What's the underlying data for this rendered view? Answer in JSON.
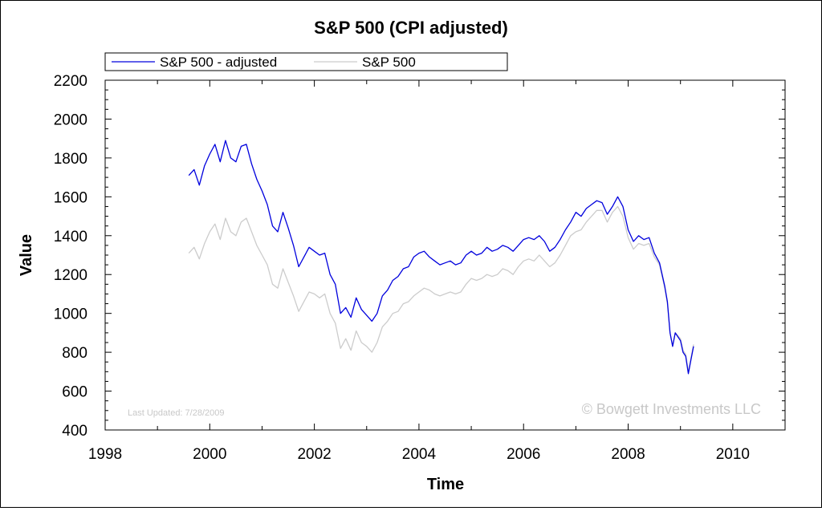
{
  "chart_data": {
    "type": "line",
    "title": "S&P 500 (CPI adjusted)",
    "xlabel": "Time",
    "ylabel": "Value",
    "xlim": [
      1998,
      2011
    ],
    "ylim": [
      400,
      2200
    ],
    "x_ticks": [
      1998,
      2000,
      2002,
      2004,
      2006,
      2008,
      2010
    ],
    "y_ticks": [
      400,
      600,
      800,
      1000,
      1200,
      1400,
      1600,
      1800,
      2000,
      2200
    ],
    "legend_position": "top",
    "annotation": "Last Updated: 7/28/2009",
    "watermark": "© Bowgett Investments LLC",
    "series": [
      {
        "name": "S&P 500 - adjusted",
        "color": "#0000dd",
        "x": [
          1999.6,
          1999.7,
          1999.8,
          1999.9,
          2000.0,
          2000.1,
          2000.2,
          2000.3,
          2000.4,
          2000.5,
          2000.6,
          2000.7,
          2000.8,
          2000.9,
          2001.0,
          2001.1,
          2001.2,
          2001.3,
          2001.4,
          2001.5,
          2001.6,
          2001.7,
          2001.8,
          2001.9,
          2002.0,
          2002.1,
          2002.2,
          2002.3,
          2002.4,
          2002.5,
          2002.6,
          2002.7,
          2002.8,
          2002.9,
          2003.0,
          2003.1,
          2003.2,
          2003.3,
          2003.4,
          2003.5,
          2003.6,
          2003.7,
          2003.8,
          2003.9,
          2004.0,
          2004.1,
          2004.2,
          2004.3,
          2004.4,
          2004.5,
          2004.6,
          2004.7,
          2004.8,
          2004.9,
          2005.0,
          2005.1,
          2005.2,
          2005.3,
          2005.4,
          2005.5,
          2005.6,
          2005.7,
          2005.8,
          2005.9,
          2006.0,
          2006.1,
          2006.2,
          2006.3,
          2006.4,
          2006.5,
          2006.6,
          2006.7,
          2006.8,
          2006.9,
          2007.0,
          2007.1,
          2007.2,
          2007.3,
          2007.4,
          2007.5,
          2007.6,
          2007.7,
          2007.8,
          2007.9,
          2008.0,
          2008.1,
          2008.2,
          2008.3,
          2008.4,
          2008.5,
          2008.6,
          2008.7,
          2008.75,
          2008.8,
          2008.85,
          2008.9,
          2009.0,
          2009.05,
          2009.1,
          2009.15,
          2009.2,
          2009.25
        ],
        "y": [
          1710,
          1740,
          1660,
          1760,
          1820,
          1870,
          1780,
          1890,
          1800,
          1780,
          1860,
          1870,
          1770,
          1690,
          1630,
          1560,
          1450,
          1420,
          1520,
          1440,
          1350,
          1240,
          1290,
          1340,
          1320,
          1300,
          1310,
          1200,
          1150,
          1000,
          1030,
          980,
          1080,
          1020,
          990,
          960,
          1000,
          1090,
          1120,
          1170,
          1190,
          1230,
          1240,
          1290,
          1310,
          1320,
          1290,
          1270,
          1250,
          1260,
          1270,
          1250,
          1260,
          1300,
          1320,
          1300,
          1310,
          1340,
          1320,
          1330,
          1350,
          1340,
          1320,
          1350,
          1380,
          1390,
          1380,
          1400,
          1370,
          1320,
          1340,
          1380,
          1430,
          1470,
          1520,
          1500,
          1540,
          1560,
          1580,
          1570,
          1510,
          1550,
          1600,
          1550,
          1430,
          1370,
          1400,
          1380,
          1390,
          1310,
          1260,
          1140,
          1060,
          900,
          830,
          900,
          860,
          800,
          780,
          690,
          760,
          830
        ]
      },
      {
        "name": "S&P 500",
        "color": "#cccccc",
        "x": [
          1999.6,
          1999.7,
          1999.8,
          1999.9,
          2000.0,
          2000.1,
          2000.2,
          2000.3,
          2000.4,
          2000.5,
          2000.6,
          2000.7,
          2000.8,
          2000.9,
          2001.0,
          2001.1,
          2001.2,
          2001.3,
          2001.4,
          2001.5,
          2001.6,
          2001.7,
          2001.8,
          2001.9,
          2002.0,
          2002.1,
          2002.2,
          2002.3,
          2002.4,
          2002.5,
          2002.6,
          2002.7,
          2002.8,
          2002.9,
          2003.0,
          2003.1,
          2003.2,
          2003.3,
          2003.4,
          2003.5,
          2003.6,
          2003.7,
          2003.8,
          2003.9,
          2004.0,
          2004.1,
          2004.2,
          2004.3,
          2004.4,
          2004.5,
          2004.6,
          2004.7,
          2004.8,
          2004.9,
          2005.0,
          2005.1,
          2005.2,
          2005.3,
          2005.4,
          2005.5,
          2005.6,
          2005.7,
          2005.8,
          2005.9,
          2006.0,
          2006.1,
          2006.2,
          2006.3,
          2006.4,
          2006.5,
          2006.6,
          2006.7,
          2006.8,
          2006.9,
          2007.0,
          2007.1,
          2007.2,
          2007.3,
          2007.4,
          2007.5,
          2007.6,
          2007.7,
          2007.8,
          2007.9,
          2008.0,
          2008.1,
          2008.2,
          2008.3,
          2008.4,
          2008.5,
          2008.6,
          2008.7,
          2008.75,
          2008.8,
          2008.85,
          2008.9,
          2009.0,
          2009.05,
          2009.1,
          2009.15,
          2009.2,
          2009.25
        ],
        "y": [
          1310,
          1340,
          1280,
          1360,
          1420,
          1460,
          1380,
          1490,
          1420,
          1400,
          1470,
          1490,
          1420,
          1350,
          1300,
          1250,
          1150,
          1130,
          1230,
          1160,
          1090,
          1010,
          1060,
          1110,
          1100,
          1080,
          1100,
          1000,
          950,
          820,
          870,
          810,
          910,
          850,
          830,
          800,
          850,
          930,
          960,
          1000,
          1010,
          1050,
          1060,
          1090,
          1110,
          1130,
          1120,
          1100,
          1090,
          1100,
          1110,
          1100,
          1110,
          1150,
          1180,
          1170,
          1180,
          1200,
          1190,
          1200,
          1230,
          1220,
          1200,
          1240,
          1270,
          1280,
          1270,
          1300,
          1270,
          1240,
          1260,
          1300,
          1350,
          1400,
          1420,
          1430,
          1470,
          1500,
          1530,
          1530,
          1470,
          1520,
          1550,
          1500,
          1390,
          1330,
          1360,
          1350,
          1360,
          1290,
          1250,
          1130,
          1050,
          900,
          830,
          900,
          870,
          810,
          790,
          700,
          770,
          840
        ]
      }
    ]
  }
}
